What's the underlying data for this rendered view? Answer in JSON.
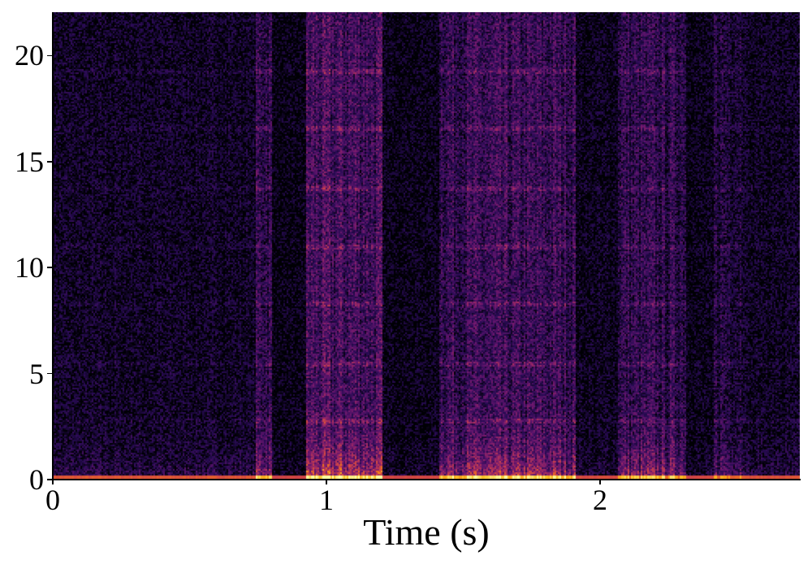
{
  "chart_data": {
    "type": "heatmap",
    "title": "",
    "xlabel": "Time (s)",
    "ylabel": "",
    "xlim": [
      0,
      2.73
    ],
    "ylim": [
      0,
      22.05
    ],
    "xticks": [
      0,
      1,
      2
    ],
    "xtick_labels": [
      "0",
      "1",
      "2"
    ],
    "yticks": [
      0,
      5,
      10,
      15,
      20
    ],
    "ytick_labels": [
      "0",
      "5",
      "10",
      "15",
      "20"
    ],
    "colormap": "inferno",
    "grid": false,
    "colors": {
      "background": "#000004",
      "low": "#420a68",
      "mid": "#bc3754",
      "high": "#fcffa4"
    },
    "energy_segments": [
      {
        "start": 0.0,
        "end": 0.74,
        "level": 0.35
      },
      {
        "start": 0.74,
        "end": 0.8,
        "level": 0.8
      },
      {
        "start": 0.8,
        "end": 0.92,
        "level": 0.15
      },
      {
        "start": 0.92,
        "end": 1.2,
        "level": 1.0
      },
      {
        "start": 1.2,
        "end": 1.41,
        "level": 0.2
      },
      {
        "start": 1.41,
        "end": 1.91,
        "level": 0.85
      },
      {
        "start": 1.91,
        "end": 2.06,
        "level": 0.25
      },
      {
        "start": 2.06,
        "end": 2.31,
        "level": 0.75
      },
      {
        "start": 2.31,
        "end": 2.41,
        "level": 0.2
      },
      {
        "start": 2.41,
        "end": 2.53,
        "level": 0.6
      },
      {
        "start": 2.53,
        "end": 2.73,
        "level": 0.3
      }
    ],
    "tonal_lines_khz": [
      2.8,
      5.5,
      8.3,
      11.0,
      13.8,
      16.6,
      19.3
    ]
  }
}
